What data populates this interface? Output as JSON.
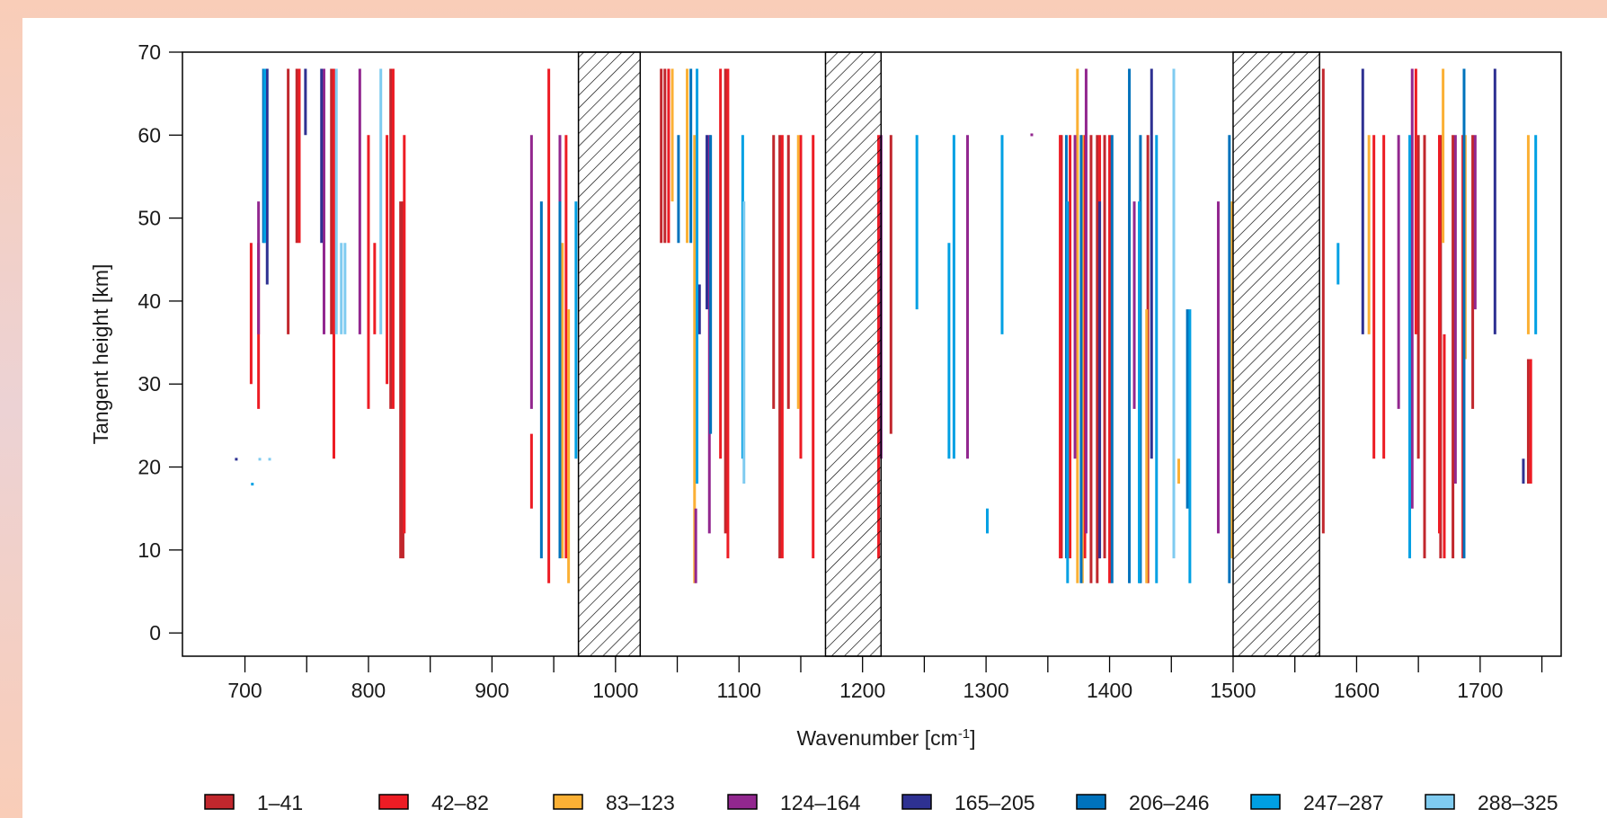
{
  "chart_data": {
    "type": "segments",
    "x_label": {
      "text": "Wavenumber [cm",
      "superscript": "-1",
      "suffix": "]"
    },
    "y_label": "Tangent height [km]",
    "xlim": [
      649.4,
      1765.6
    ],
    "ylim": [
      -2.8,
      70
    ],
    "xticks": [
      700,
      800,
      900,
      1000,
      1100,
      1200,
      1300,
      1400,
      1500,
      1600,
      1700
    ],
    "xminorticks": [
      750,
      850,
      950,
      1050,
      1150,
      1250,
      1350,
      1450,
      1550,
      1650,
      1750
    ],
    "yticks": [
      0,
      10,
      20,
      30,
      40,
      50,
      60,
      70
    ],
    "excluded_regions": [
      [
        970,
        1020
      ],
      [
        1170,
        1215
      ],
      [
        1500,
        1570
      ]
    ],
    "series": [
      {
        "name": "1–41",
        "color": "#c1272d",
        "segments": [
          [
            735,
            36,
            68
          ],
          [
            742,
            47,
            68
          ],
          [
            770,
            36,
            68
          ],
          [
            818,
            27,
            68
          ],
          [
            826,
            9,
            52
          ],
          [
            828,
            9,
            52
          ],
          [
            1037,
            47,
            68
          ],
          [
            1040,
            47,
            68
          ],
          [
            1089,
            12,
            68
          ],
          [
            1128,
            27,
            60
          ],
          [
            1133,
            9,
            60
          ],
          [
            1140,
            27,
            60
          ],
          [
            1223,
            24,
            60
          ],
          [
            1361,
            9,
            60
          ],
          [
            1385,
            6,
            60
          ],
          [
            1390,
            6,
            60
          ],
          [
            1396,
            9,
            60
          ],
          [
            1431,
            6,
            60
          ],
          [
            1573,
            12,
            68
          ],
          [
            1650,
            21,
            60
          ],
          [
            1655,
            9,
            60
          ],
          [
            1668,
            9,
            60
          ],
          [
            1678,
            9,
            60
          ],
          [
            1694,
            27,
            60
          ],
          [
            1739,
            18,
            33
          ]
        ]
      },
      {
        "name": "42–82",
        "color": "#ed1c24",
        "segments": [
          [
            705,
            30,
            47
          ],
          [
            711,
            27,
            47
          ],
          [
            744,
            47,
            68
          ],
          [
            772,
            21,
            68
          ],
          [
            800,
            27,
            60
          ],
          [
            805,
            36,
            47
          ],
          [
            815,
            30,
            60
          ],
          [
            820,
            27,
            68
          ],
          [
            829,
            12,
            60
          ],
          [
            932,
            15,
            24
          ],
          [
            946,
            6,
            68
          ],
          [
            960,
            9,
            60
          ],
          [
            1043,
            47,
            68
          ],
          [
            1085,
            21,
            68
          ],
          [
            1091,
            9,
            68
          ],
          [
            1135,
            9,
            60
          ],
          [
            1150,
            21,
            60
          ],
          [
            1160,
            9,
            60
          ],
          [
            1213,
            9,
            60
          ],
          [
            1360,
            9,
            60
          ],
          [
            1368,
            9,
            60
          ],
          [
            1380,
            9,
            60
          ],
          [
            1392,
            9,
            60
          ],
          [
            1400,
            6,
            60
          ],
          [
            1614,
            21,
            60
          ],
          [
            1622,
            21,
            60
          ],
          [
            1648,
            36,
            68
          ],
          [
            1667,
            12,
            60
          ],
          [
            1671,
            9,
            36
          ],
          [
            1686,
            9,
            60
          ],
          [
            1741,
            18,
            33
          ]
        ]
      },
      {
        "name": "83–123",
        "color": "#fbb034",
        "segments": [
          [
            957,
            9,
            47
          ],
          [
            962,
            6,
            39
          ],
          [
            1046,
            52,
            68
          ],
          [
            1058,
            47,
            68
          ],
          [
            1064,
            6,
            60
          ],
          [
            1148,
            27,
            60
          ],
          [
            1374,
            6,
            68
          ],
          [
            1378,
            6,
            60
          ],
          [
            1430,
            6,
            39
          ],
          [
            1456,
            18,
            21
          ],
          [
            1499,
            9,
            52
          ],
          [
            1610,
            36,
            60
          ],
          [
            1670,
            47,
            68
          ],
          [
            1688,
            33,
            60
          ],
          [
            1739,
            36,
            60
          ]
        ]
      },
      {
        "name": "124–164",
        "color": "#92278f",
        "segments": [
          [
            711,
            36,
            52
          ],
          [
            764,
            36,
            68
          ],
          [
            793,
            36,
            68
          ],
          [
            932,
            27,
            60
          ],
          [
            955,
            12,
            60
          ],
          [
            1065,
            6,
            15
          ],
          [
            1076,
            12,
            60
          ],
          [
            1215,
            21,
            60
          ],
          [
            1285,
            21,
            60
          ],
          [
            1337,
            60,
            60.2
          ],
          [
            1372,
            21,
            60
          ],
          [
            1381,
            12,
            68
          ],
          [
            1420,
            27,
            52
          ],
          [
            1488,
            12,
            52
          ],
          [
            1634,
            27,
            60
          ],
          [
            1645,
            15,
            68
          ],
          [
            1680,
            18,
            60
          ],
          [
            1696,
            39,
            60
          ]
        ]
      },
      {
        "name": "165–205",
        "color": "#2e3192",
        "segments": [
          [
            693,
            20.9,
            21.1
          ],
          [
            718,
            42,
            68
          ],
          [
            749,
            60,
            68
          ],
          [
            762,
            47,
            68
          ],
          [
            1068,
            36,
            42
          ],
          [
            1074,
            39,
            60
          ],
          [
            1392,
            9,
            52
          ],
          [
            1434,
            21,
            68
          ],
          [
            1605,
            36,
            68
          ],
          [
            1712,
            36,
            68
          ],
          [
            1735,
            18,
            21
          ]
        ]
      },
      {
        "name": "206–246",
        "color": "#0072bc",
        "segments": [
          [
            715,
            47,
            68
          ],
          [
            940,
            9,
            52
          ],
          [
            955,
            9,
            52
          ],
          [
            1051,
            47,
            60
          ],
          [
            1061,
            47,
            68
          ],
          [
            1077,
            24,
            60
          ],
          [
            1365,
            9,
            60
          ],
          [
            1377,
            6,
            60
          ],
          [
            1402,
            6,
            60
          ],
          [
            1416,
            6,
            68
          ],
          [
            1425,
            6,
            60
          ],
          [
            1463,
            15,
            39
          ],
          [
            1497,
            6,
            60
          ],
          [
            1687,
            9,
            68
          ]
        ]
      },
      {
        "name": "247–287",
        "color": "#00a0e3",
        "segments": [
          [
            706,
            17.9,
            18.1
          ],
          [
            716,
            47,
            68
          ],
          [
            968,
            21,
            52
          ],
          [
            1066,
            18,
            68
          ],
          [
            1103,
            21,
            60
          ],
          [
            1244,
            39,
            60
          ],
          [
            1270,
            21,
            47
          ],
          [
            1274,
            21,
            60
          ],
          [
            1301,
            12,
            15
          ],
          [
            1313,
            36,
            60
          ],
          [
            1366,
            6,
            52
          ],
          [
            1424,
            6,
            52
          ],
          [
            1438,
            6,
            60
          ],
          [
            1465,
            6,
            39
          ],
          [
            1585,
            42,
            47
          ],
          [
            1643,
            9,
            60
          ],
          [
            1745,
            36,
            60
          ]
        ]
      },
      {
        "name": "288–325",
        "color": "#7fcbf0",
        "segments": [
          [
            712,
            20.9,
            21.1
          ],
          [
            720,
            20.9,
            21.1
          ],
          [
            774,
            36,
            68
          ],
          [
            778,
            36,
            47
          ],
          [
            781,
            36,
            47
          ],
          [
            810,
            36,
            68
          ],
          [
            1104,
            18,
            52
          ],
          [
            1452,
            9,
            68
          ]
        ]
      }
    ]
  }
}
